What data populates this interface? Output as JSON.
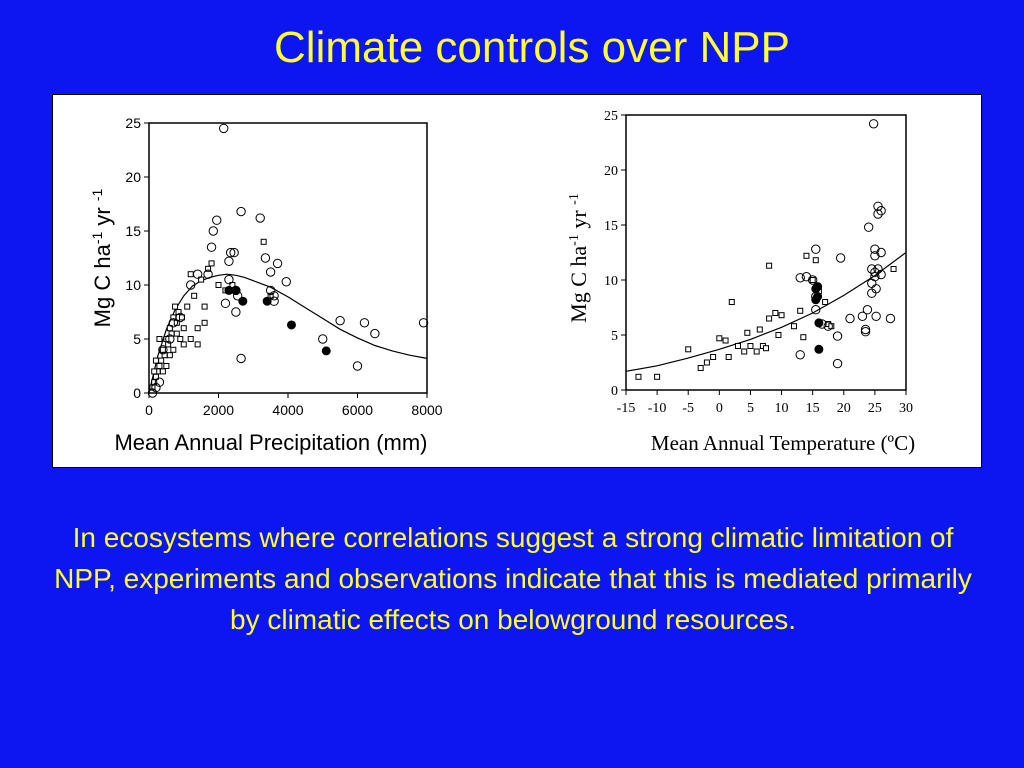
{
  "slide": {
    "title": "Climate controls over NPP",
    "caption": "In ecosystems where correlations suggest a strong climatic limitation of NPP, experiments and observations indicate that this is mediated primarily by climatic effects on belowground resources.",
    "colors": {
      "background": "#0b16f0",
      "text": "#ffff33",
      "panel": "#ffffff"
    }
  },
  "chart_data": [
    {
      "type": "scatter",
      "xlabel": "Mean Annual Precipitation (mm)",
      "ylabel": "Mg C ha-1 yr -1",
      "xlim": [
        0,
        8000
      ],
      "ylim": [
        0,
        25
      ],
      "xticks": [
        "0",
        "2000",
        "4000",
        "6000",
        "8000"
      ],
      "yticks": [
        "0",
        "5",
        "10",
        "15",
        "20",
        "25"
      ],
      "series": [
        {
          "marker": "square-open",
          "points": [
            [
              100,
              0.5
            ],
            [
              150,
              1
            ],
            [
              200,
              1.5
            ],
            [
              250,
              2
            ],
            [
              300,
              2.5
            ],
            [
              350,
              3
            ],
            [
              400,
              4
            ],
            [
              450,
              3.5
            ],
            [
              500,
              5
            ],
            [
              550,
              4.5
            ],
            [
              600,
              6
            ],
            [
              650,
              5.5
            ],
            [
              700,
              7
            ],
            [
              750,
              8
            ],
            [
              800,
              6.5
            ],
            [
              850,
              7.5
            ],
            [
              900,
              5
            ],
            [
              950,
              7
            ],
            [
              1000,
              4.5
            ],
            [
              1100,
              8
            ],
            [
              1200,
              11
            ],
            [
              1300,
              9
            ],
            [
              1400,
              6
            ],
            [
              1500,
              10.5
            ],
            [
              1600,
              8
            ],
            [
              1700,
              11.5
            ],
            [
              1800,
              12
            ],
            [
              2000,
              10
            ],
            [
              2200,
              9.5
            ],
            [
              2400,
              10
            ],
            [
              2700,
              8.5
            ],
            [
              3300,
              14
            ],
            [
              3500,
              9
            ],
            [
              300,
              5
            ],
            [
              200,
              3
            ],
            [
              150,
              2
            ],
            [
              400,
              2
            ],
            [
              600,
              3.5
            ],
            [
              800,
              5.5
            ],
            [
              1000,
              6
            ],
            [
              1200,
              5
            ],
            [
              1400,
              4.5
            ],
            [
              1600,
              6.5
            ],
            [
              700,
              4
            ],
            [
              500,
              2.5
            ]
          ]
        },
        {
          "marker": "circle-open",
          "points": [
            [
              2150,
              24.5
            ],
            [
              1950,
              16
            ],
            [
              1850,
              15
            ],
            [
              1800,
              13.5
            ],
            [
              1700,
              11
            ],
            [
              1400,
              11
            ],
            [
              1200,
              10
            ],
            [
              900,
              7
            ],
            [
              700,
              6.5
            ],
            [
              600,
              5
            ],
            [
              400,
              4
            ],
            [
              300,
              1
            ],
            [
              200,
              0.5
            ],
            [
              100,
              0
            ],
            [
              2350,
              13
            ],
            [
              2450,
              13
            ],
            [
              2550,
              9
            ],
            [
              2650,
              16.8
            ],
            [
              2300,
              10.5
            ],
            [
              2500,
              9.5
            ],
            [
              2300,
              12.2
            ],
            [
              3200,
              16.2
            ],
            [
              3350,
              12.5
            ],
            [
              3500,
              11.2
            ],
            [
              3700,
              12
            ],
            [
              3500,
              9.5
            ],
            [
              3600,
              9
            ],
            [
              3950,
              10.3
            ],
            [
              3600,
              8.5
            ],
            [
              2500,
              7.5
            ],
            [
              2650,
              3.2
            ],
            [
              5000,
              5
            ],
            [
              5500,
              6.7
            ],
            [
              6000,
              2.5
            ],
            [
              6200,
              6.5
            ],
            [
              6500,
              5.5
            ],
            [
              7900,
              6.5
            ],
            [
              2200,
              8.3
            ]
          ]
        },
        {
          "marker": "circle-filled",
          "points": [
            [
              2300,
              9.5
            ],
            [
              2500,
              9.5
            ],
            [
              2700,
              8.5
            ],
            [
              3400,
              8.5
            ],
            [
              4100,
              6.3
            ],
            [
              5100,
              3.9
            ]
          ]
        }
      ],
      "fit": {
        "type": "curve",
        "points": [
          [
            0,
            0
          ],
          [
            250,
            3.4
          ],
          [
            500,
            5.9
          ],
          [
            750,
            7.7
          ],
          [
            1000,
            9
          ],
          [
            1250,
            9.9
          ],
          [
            1500,
            10.4
          ],
          [
            1750,
            10.7
          ],
          [
            2000,
            10.9
          ],
          [
            2250,
            11
          ],
          [
            2500,
            10.9
          ],
          [
            2750,
            10.7
          ],
          [
            3000,
            10.4
          ],
          [
            3500,
            9.8
          ],
          [
            4000,
            8.9
          ],
          [
            4500,
            7.9
          ],
          [
            5000,
            6.9
          ],
          [
            5500,
            5.9
          ],
          [
            6000,
            5.1
          ],
          [
            6500,
            4.4
          ],
          [
            7000,
            3.9
          ],
          [
            7500,
            3.5
          ],
          [
            8000,
            3.2
          ]
        ]
      }
    },
    {
      "type": "scatter",
      "xlabel": "Mean Annual Temperature (ºC)",
      "ylabel": "Mg C ha-1 yr -1",
      "xlim": [
        -15,
        30
      ],
      "ylim": [
        0,
        25
      ],
      "xticks": [
        "-15",
        "-10",
        "-5",
        "0",
        "5",
        "10",
        "15",
        "20",
        "25",
        "30"
      ],
      "yticks": [
        "0",
        "5",
        "10",
        "15",
        "20",
        "25"
      ],
      "series": [
        {
          "marker": "square-open",
          "points": [
            [
              -13,
              1.2
            ],
            [
              -10,
              1.2
            ],
            [
              -5,
              3.7
            ],
            [
              -3,
              2
            ],
            [
              -2,
              2.5
            ],
            [
              -1,
              3
            ],
            [
              0,
              4.7
            ],
            [
              1,
              4.5
            ],
            [
              1.5,
              3
            ],
            [
              2,
              8
            ],
            [
              3,
              4
            ],
            [
              4,
              3.5
            ],
            [
              4.5,
              5.2
            ],
            [
              5,
              4
            ],
            [
              6,
              3.5
            ],
            [
              6.5,
              5.5
            ],
            [
              7,
              4
            ],
            [
              7.5,
              3.8
            ],
            [
              8,
              11.3
            ],
            [
              8,
              6.5
            ],
            [
              9,
              7
            ],
            [
              9.5,
              5
            ],
            [
              10,
              6.8
            ],
            [
              12,
              5.8
            ],
            [
              13,
              7.2
            ],
            [
              13.5,
              4.8
            ],
            [
              14,
              12.2
            ],
            [
              15,
              10
            ],
            [
              15.5,
              11.8
            ],
            [
              16,
              9
            ],
            [
              17,
              8
            ],
            [
              17.5,
              6
            ],
            [
              18,
              5.8
            ],
            [
              28,
              11
            ]
          ]
        },
        {
          "marker": "circle-open",
          "points": [
            [
              13,
              10.2
            ],
            [
              14,
              10.3
            ],
            [
              15,
              10
            ],
            [
              15.5,
              12.8
            ],
            [
              13,
              3.2
            ],
            [
              15.5,
              7.3
            ],
            [
              15.5,
              8.5
            ],
            [
              16.5,
              6
            ],
            [
              17.5,
              5.8
            ],
            [
              19,
              4.9
            ],
            [
              19.5,
              12
            ],
            [
              19,
              2.4
            ],
            [
              21,
              6.5
            ],
            [
              23,
              6.7
            ],
            [
              23.5,
              5.5
            ],
            [
              23.8,
              7.3
            ],
            [
              23.5,
              5.3
            ],
            [
              24,
              14.8
            ],
            [
              24.5,
              11
            ],
            [
              24.5,
              8.8
            ],
            [
              24.5,
              9.7
            ],
            [
              24.8,
              24.2
            ],
            [
              25,
              12.8
            ],
            [
              25,
              12.2
            ],
            [
              25,
              10.7
            ],
            [
              25,
              10.3
            ],
            [
              25.2,
              9.2
            ],
            [
              25.5,
              16.7
            ],
            [
              25.5,
              16
            ],
            [
              26,
              12.5
            ],
            [
              26,
              16.3
            ],
            [
              25.5,
              11
            ],
            [
              25.2,
              6.7
            ],
            [
              26,
              10.5
            ],
            [
              27.5,
              6.5
            ]
          ]
        },
        {
          "marker": "circle-filled",
          "points": [
            [
              15.5,
              9.2
            ],
            [
              15.5,
              8.2
            ],
            [
              16,
              6.1
            ],
            [
              16,
              3.7
            ],
            [
              15.8,
              9.4
            ],
            [
              15.8,
              8.5
            ]
          ]
        }
      ],
      "fit": {
        "type": "curve",
        "points": [
          [
            -15,
            1.7
          ],
          [
            -10,
            2.2
          ],
          [
            -5,
            2.9
          ],
          [
            0,
            3.7
          ],
          [
            5,
            4.6
          ],
          [
            10,
            5.7
          ],
          [
            15,
            7
          ],
          [
            20,
            8.6
          ],
          [
            25,
            10.4
          ],
          [
            30,
            12.5
          ]
        ]
      }
    }
  ]
}
